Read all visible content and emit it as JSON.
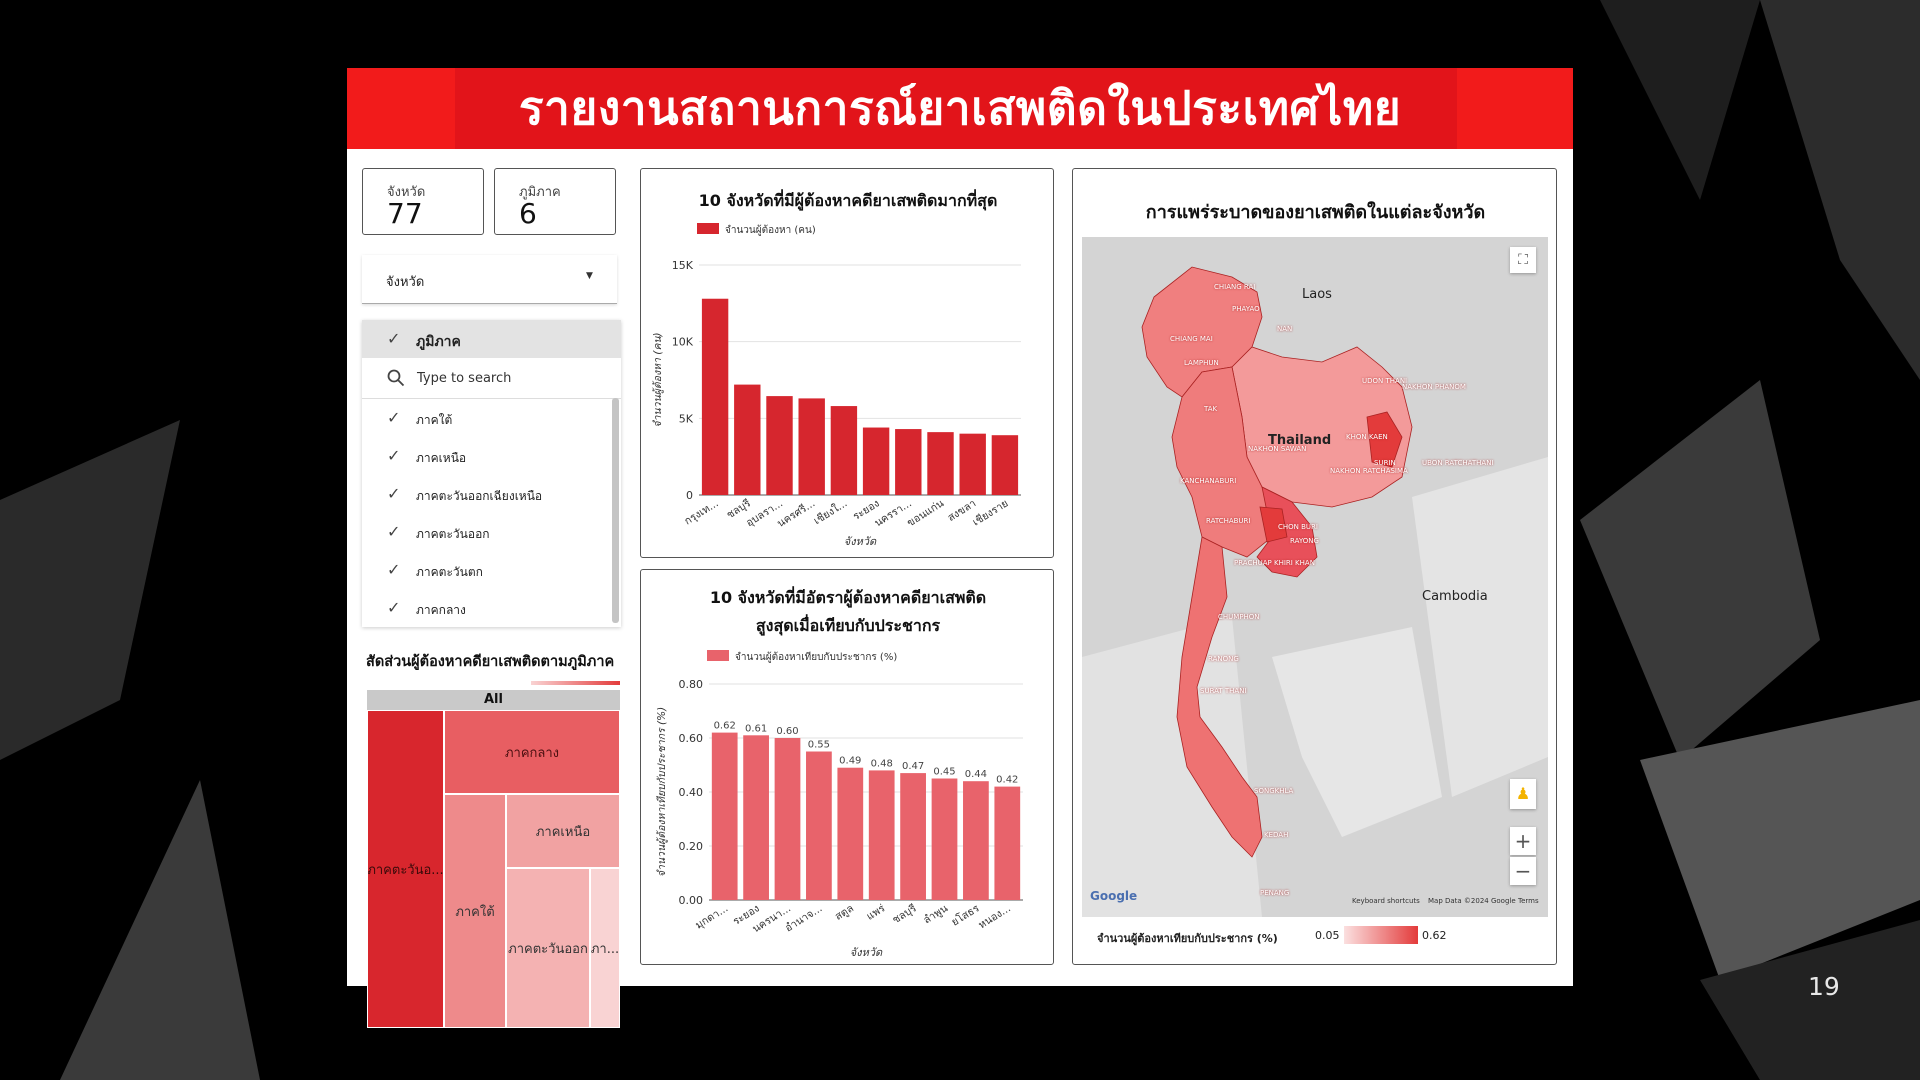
{
  "page_number": "19",
  "banner": {
    "title": "รายงานสถานการณ์ยาเสพติดในประเทศไทย"
  },
  "scorecards": [
    {
      "label": "จังหวัด",
      "value": "77"
    },
    {
      "label": "ภูมิภาค",
      "value": "6"
    }
  ],
  "province_dropdown": {
    "label": "จังหวัด"
  },
  "region_filter": {
    "header": "ภูมิภาค",
    "search_placeholder": "Type to search",
    "items": [
      "ภาคใต้",
      "ภาคเหนือ",
      "ภาคตะวันออกเฉียงเหนือ",
      "ภาคตะวันออก",
      "ภาคตะวันตก",
      "ภาคกลาง"
    ]
  },
  "treemap": {
    "title": "สัดส่วนผู้ต้องหาคดียาเสพติดตามภูมิภาค",
    "root_label": "All",
    "cells": [
      "ภาคตะวันอ...",
      "ภาคกลาง",
      "ภาคใต้",
      "ภาคเหนือ",
      "ภาคตะวันออก",
      "ภา..."
    ]
  },
  "colors": {
    "banner": "#f21b1b",
    "bar1": "#d6262e",
    "bar2": "#e8636b",
    "accent": "#e33b3b"
  },
  "chart_data": [
    {
      "type": "bar",
      "title": "10 จังหวัดที่มีผู้ต้องหาคดียาเสพติดมากที่สุด",
      "legend": "จำนวนผู้ต้องหา (คน)",
      "xlabel": "จังหวัด",
      "ylabel": "จำนวนผู้ต้องหา (คน)",
      "ylim": [
        0,
        15000
      ],
      "yticks": [
        "0",
        "5K",
        "10K",
        "15K"
      ],
      "categories": [
        "กรุงเท...",
        "ชลบุรี",
        "อุบลรา...",
        "นครศรี...",
        "เชียงใ...",
        "ระยอง",
        "นครรา...",
        "ขอนแก่น",
        "สงขลา",
        "เชียงราย"
      ],
      "values": [
        12800,
        7200,
        6450,
        6300,
        5800,
        4400,
        4300,
        4100,
        4000,
        3900
      ]
    },
    {
      "type": "bar",
      "title_line1": "10 จังหวัดที่มีอัตราผู้ต้องหาคดียาเสพติด",
      "title_line2": "สูงสุดเมื่อเทียบกับประชากร",
      "legend": "จำนวนผู้ต้องหาเทียบกับประชากร (%)",
      "xlabel": "จังหวัด",
      "ylabel": "จำนวนผู้ต้องหาเทียบกับประชากร (%)",
      "ylim": [
        0,
        0.8
      ],
      "yticks": [
        "0.00",
        "0.20",
        "0.40",
        "0.60",
        "0.80"
      ],
      "categories": [
        "มุกดา...",
        "ระยอง",
        "นครนา...",
        "อำนาจ...",
        "สตูล",
        "แพร่",
        "ชลบุรี",
        "ลำพูน",
        "ยโสธร",
        "หนอง..."
      ],
      "values": [
        0.62,
        0.61,
        0.6,
        0.55,
        0.49,
        0.48,
        0.47,
        0.45,
        0.44,
        0.42
      ],
      "value_labels": [
        "0.62",
        "0.61",
        "0.60",
        "0.55",
        "0.49",
        "0.48",
        "0.47",
        "0.45",
        "0.44",
        "0.42"
      ]
    }
  ],
  "map": {
    "title": "การแพร่ระบาดของยาเสพติดในแต่ละจังหวัด",
    "country_labels": [
      "Laos",
      "Thailand",
      "Cambodia"
    ],
    "place_labels": [
      "CHIANG RAI",
      "PHAYAO",
      "NAN",
      "CHIANG MAI",
      "LAMPHUN",
      "TAK",
      "UDON THANI",
      "NAKHON PHANOM",
      "NAKHON SAWAN",
      "KHON KAEN",
      "KANCHANABURI",
      "NAKHON RATCHASIMA",
      "SURIN",
      "UBON RATCHATHANI",
      "RATCHABURI",
      "CHON BURI",
      "RAYONG",
      "PRACHUAP KHIRI KHAN",
      "CHUMPHON",
      "RANONG",
      "SURAT THANI",
      "SONGKHLA",
      "KEDAH",
      "PENANG"
    ],
    "attribution": {
      "google": "Google",
      "shortcuts": "Keyboard shortcuts",
      "mapdata": "Map Data ©2024 Google",
      "terms": "Terms"
    },
    "zoom_in": "+",
    "zoom_out": "−",
    "legend_label": "จำนวนผู้ต้องหาเทียบกับประชากร (%)",
    "legend_min": "0.05",
    "legend_max": "0.62"
  }
}
